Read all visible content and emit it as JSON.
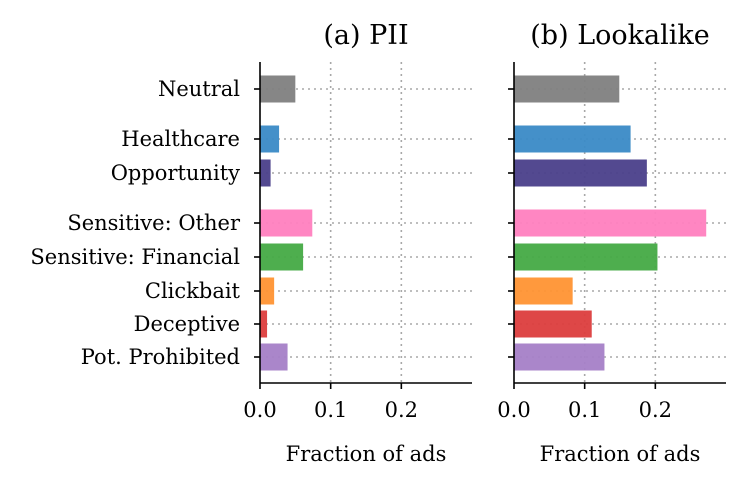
{
  "chart_data": [
    {
      "type": "bar",
      "orientation": "horizontal",
      "title": "(a) PII",
      "xlabel": "Fraction of ads",
      "xlim": [
        0,
        0.3
      ],
      "xticks": [
        "0.0",
        "0.1",
        "0.2"
      ],
      "grid": true,
      "categories": [
        "Neutral",
        "Healthcare",
        "Opportunity",
        "Sensitive: Other",
        "Sensitive: Financial",
        "Clickbait",
        "Deceptive",
        "Pot. Prohibited"
      ],
      "values": [
        0.05,
        0.027,
        0.015,
        0.074,
        0.061,
        0.02,
        0.01,
        0.039
      ],
      "colors": [
        "#808080",
        "#3a8ac6",
        "#4a3f8a",
        "#ff7fbf",
        "#45aa45",
        "#ff9333",
        "#dc3d3d",
        "#a57fc7"
      ]
    },
    {
      "type": "bar",
      "orientation": "horizontal",
      "title": "(b) Lookalike",
      "xlabel": "Fraction of ads",
      "xlim": [
        0,
        0.3
      ],
      "xticks": [
        "0.0",
        "0.1",
        "0.2"
      ],
      "grid": true,
      "categories": [
        "Neutral",
        "Healthcare",
        "Opportunity",
        "Sensitive: Other",
        "Sensitive: Financial",
        "Clickbait",
        "Deceptive",
        "Pot. Prohibited"
      ],
      "values": [
        0.149,
        0.165,
        0.188,
        0.272,
        0.203,
        0.083,
        0.11,
        0.128
      ],
      "colors": [
        "#808080",
        "#3a8ac6",
        "#4a3f8a",
        "#ff7fbf",
        "#45aa45",
        "#ff9333",
        "#dc3d3d",
        "#a57fc7"
      ]
    }
  ]
}
